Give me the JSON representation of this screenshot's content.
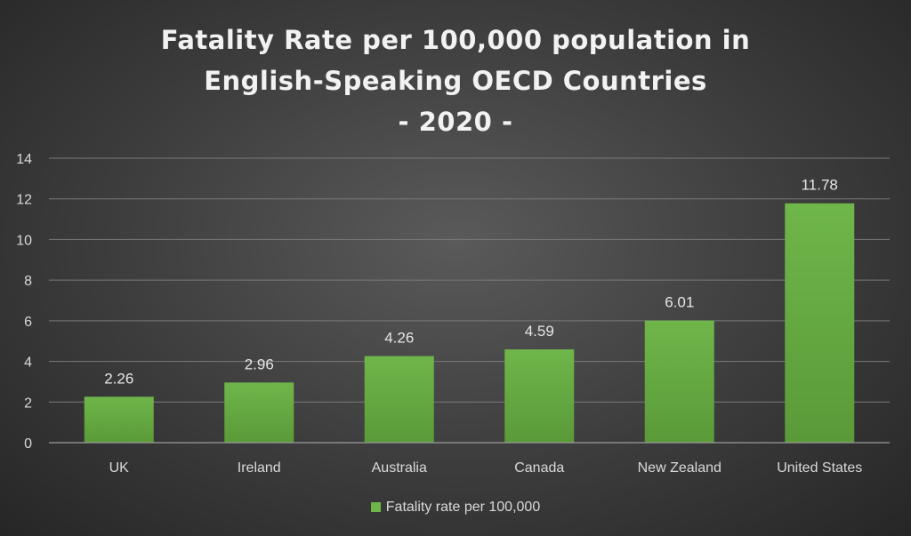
{
  "chart_data": {
    "type": "bar",
    "title_lines": [
      "Fatality Rate per 100,000 population in",
      "English-Speaking OECD Countries",
      "- 2020 -"
    ],
    "categories": [
      "UK",
      "Ireland",
      "Australia",
      "Canada",
      "New Zealand",
      "United States"
    ],
    "series": [
      {
        "name": "Fatality rate per 100,000",
        "values": [
          2.26,
          2.96,
          4.26,
          4.59,
          6.01,
          11.78
        ]
      }
    ],
    "value_labels": [
      "2.26",
      "2.96",
      "4.26",
      "4.59",
      "6.01",
      "11.78"
    ],
    "y_ticks": [
      "0",
      "2",
      "4",
      "6",
      "8",
      "10",
      "12",
      "14"
    ],
    "ylim": [
      0,
      14
    ],
    "xlabel": "",
    "ylabel": "",
    "grid": true,
    "legend_position": "bottom",
    "colors": {
      "bar": "#6fb64a",
      "bar_dark": "#5a9a38",
      "grid": "#7a7a7a",
      "text": "#d9d9d9"
    }
  }
}
